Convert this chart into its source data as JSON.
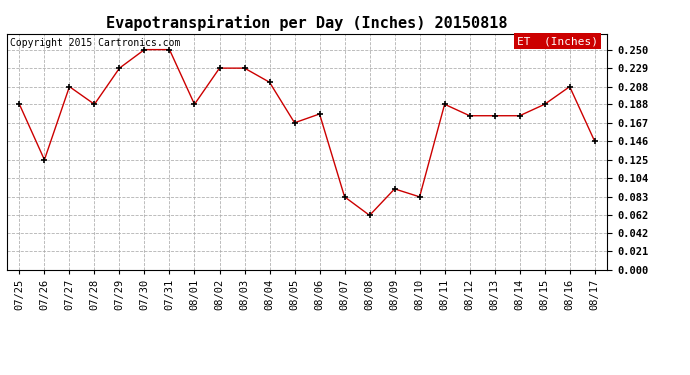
{
  "title": "Evapotranspiration per Day (Inches) 20150818",
  "copyright_text": "Copyright 2015 Cartronics.com",
  "legend_label": "ET  (Inches)",
  "x_labels": [
    "07/25",
    "07/26",
    "07/27",
    "07/28",
    "07/29",
    "07/30",
    "07/31",
    "08/01",
    "08/02",
    "08/03",
    "08/04",
    "08/05",
    "08/06",
    "08/07",
    "08/08",
    "08/09",
    "08/10",
    "08/11",
    "08/12",
    "08/13",
    "08/14",
    "08/15",
    "08/16",
    "08/17"
  ],
  "y_values": [
    0.188,
    0.125,
    0.208,
    0.188,
    0.229,
    0.25,
    0.25,
    0.188,
    0.229,
    0.229,
    0.213,
    0.167,
    0.177,
    0.083,
    0.062,
    0.092,
    0.083,
    0.188,
    0.175,
    0.175,
    0.175,
    0.188,
    0.208,
    0.146
  ],
  "y_ticks": [
    0.0,
    0.021,
    0.042,
    0.062,
    0.083,
    0.104,
    0.125,
    0.146,
    0.167,
    0.188,
    0.208,
    0.229,
    0.25
  ],
  "ylim": [
    0.0,
    0.268
  ],
  "line_color": "#CC0000",
  "marker": "+",
  "marker_color": "#000000",
  "bg_color": "#FFFFFF",
  "grid_color": "#AAAAAA",
  "legend_bg": "#CC0000",
  "legend_text_color": "#FFFFFF",
  "title_fontsize": 11,
  "tick_fontsize": 7.5,
  "copyright_fontsize": 7,
  "legend_fontsize": 8
}
